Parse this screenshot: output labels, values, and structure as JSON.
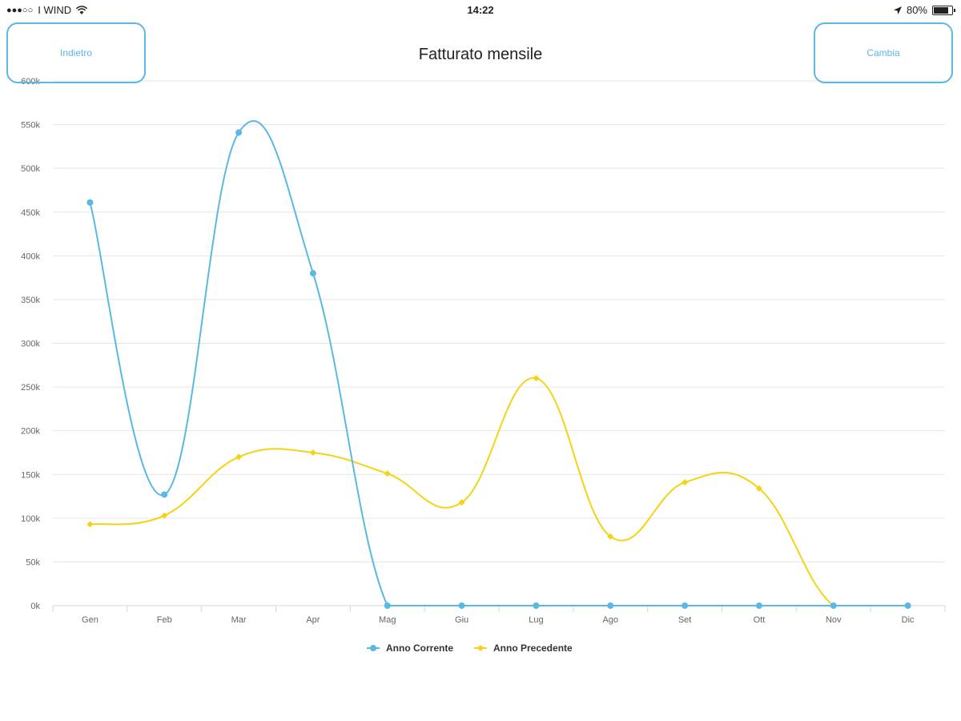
{
  "status_bar": {
    "carrier": "I WIND",
    "time": "14:22",
    "battery": "80%",
    "battery_level": 0.8
  },
  "nav": {
    "back_label": "Indietro",
    "change_label": "Cambia"
  },
  "colors": {
    "current": "#5bb8e3",
    "previous": "#f5d312",
    "grid": "#e6e6e6",
    "axis": "#cfd8e3"
  },
  "chart_data": {
    "type": "line",
    "title": "Fatturato mensile",
    "categories": [
      "Gen",
      "Feb",
      "Mar",
      "Apr",
      "Mag",
      "Giu",
      "Lug",
      "Ago",
      "Set",
      "Ott",
      "Nov",
      "Dic"
    ],
    "y_ticks": [
      "0k",
      "50k",
      "100k",
      "150k",
      "200k",
      "250k",
      "300k",
      "350k",
      "400k",
      "450k",
      "500k",
      "550k",
      "600k"
    ],
    "ylim": [
      0,
      600000
    ],
    "grid": true,
    "legend_position": "bottom-center",
    "series": [
      {
        "name": "Anno Corrente",
        "color": "#5bb8e3",
        "values": [
          461000,
          127000,
          541000,
          380000,
          0,
          0,
          0,
          0,
          0,
          0,
          0,
          0
        ]
      },
      {
        "name": "Anno Precedente",
        "color": "#f5d312",
        "values": [
          93000,
          103000,
          170000,
          175000,
          151000,
          118000,
          260000,
          79000,
          141000,
          134000,
          0,
          0
        ]
      }
    ]
  }
}
